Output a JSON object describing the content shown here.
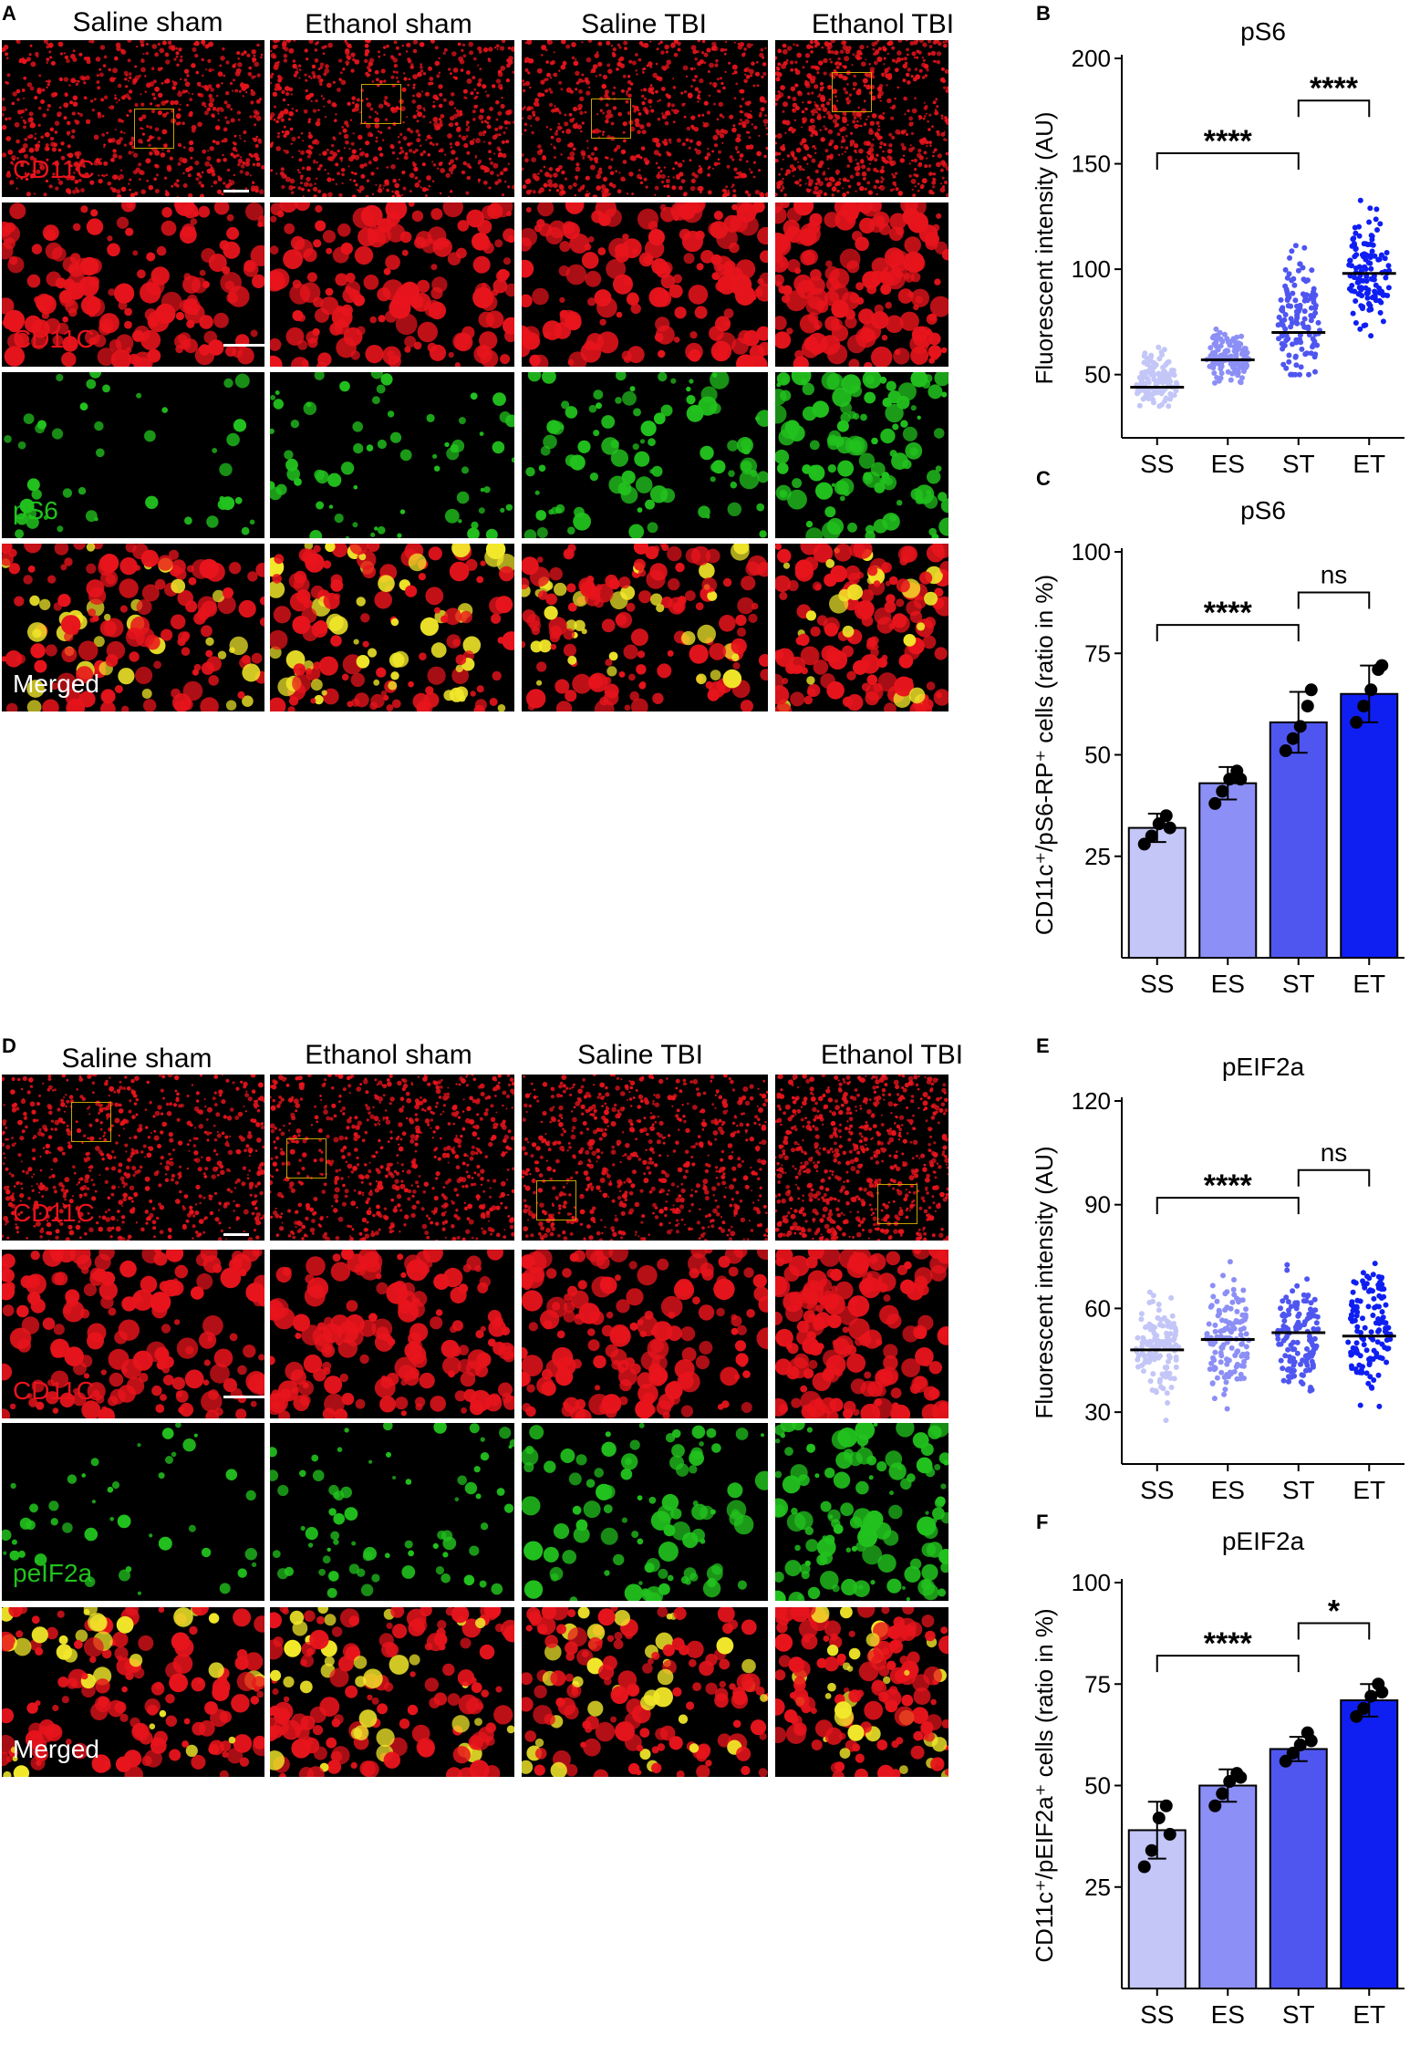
{
  "panel_letters": [
    "A",
    "B",
    "C",
    "D",
    "E",
    "F"
  ],
  "group_titles": [
    "Saline sham",
    "Ethanol sham",
    "Saline TBI",
    "Ethanol TBI"
  ],
  "row_labels_a": [
    "CD11C",
    "CD11C",
    "pS6",
    "Merged"
  ],
  "row_labels_d": [
    "CD11C",
    "CD11C",
    "peIF2a",
    "Merged"
  ],
  "colors": {
    "cd11c": "#e8141c",
    "green_stain": "#22c21e",
    "roi_box": "#c9a200",
    "SS": "#c3c6f7",
    "ES": "#8c8ff5",
    "ST": "#4f56f0",
    "ET": "#0f1ff2"
  },
  "chart_data": [
    {
      "id": "B",
      "type": "scatter",
      "title": "pS6",
      "ylabel": "Fluorescent intensity (AU)",
      "categories": [
        "SS",
        "ES",
        "ST",
        "ET"
      ],
      "ylim": [
        20,
        200
      ],
      "yticks": [
        50,
        100,
        150,
        200
      ],
      "means": [
        44,
        57,
        70,
        98
      ],
      "spread": [
        [
          35,
          75
        ],
        [
          45,
          78
        ],
        [
          50,
          133
        ],
        [
          62,
          141
        ]
      ],
      "n": 130,
      "brackets": [
        {
          "from": "SS",
          "to": "ST",
          "label": "****",
          "y": 155
        },
        {
          "from": "ST",
          "to": "ET",
          "label": "****",
          "y": 180
        }
      ]
    },
    {
      "id": "C",
      "type": "bar",
      "title": "pS6",
      "ylabel": "CD11c⁺/pS6-RP⁺ cells (ratio in %)",
      "categories": [
        "SS",
        "ES",
        "ST",
        "ET"
      ],
      "ylim": [
        0,
        100
      ],
      "yticks": [
        25,
        50,
        75,
        100
      ],
      "values": [
        32,
        43,
        58,
        65
      ],
      "errors": [
        3.5,
        4,
        7.5,
        7
      ],
      "points": [
        [
          28,
          30,
          33,
          35,
          32
        ],
        [
          38,
          41,
          44,
          46,
          44
        ],
        [
          51,
          54,
          57,
          62,
          66
        ],
        [
          58,
          62,
          66,
          71,
          72
        ]
      ],
      "brackets": [
        {
          "from": "SS",
          "to": "ST",
          "label": "****",
          "y": 82
        },
        {
          "from": "ST",
          "to": "ET",
          "label": "ns",
          "y": 90
        }
      ]
    },
    {
      "id": "E",
      "type": "scatter",
      "title": "pEIF2a",
      "ylabel": "Fluorescent intensity (AU)",
      "categories": [
        "SS",
        "ES",
        "ST",
        "ET"
      ],
      "ylim": [
        15,
        120
      ],
      "yticks": [
        30,
        60,
        90,
        120
      ],
      "means": [
        48,
        51,
        53,
        52
      ],
      "spread": [
        [
          25,
          68
        ],
        [
          27,
          76
        ],
        [
          31,
          75
        ],
        [
          30,
          85
        ]
      ],
      "n": 130,
      "brackets": [
        {
          "from": "SS",
          "to": "ST",
          "label": "****",
          "y": 92
        },
        {
          "from": "ST",
          "to": "ET",
          "label": "ns",
          "y": 100
        }
      ]
    },
    {
      "id": "F",
      "type": "bar",
      "title": "pEIF2a",
      "ylabel": "CD11c⁺/pEIF2a⁺ cells (ratio in %)",
      "categories": [
        "SS",
        "ES",
        "ST",
        "ET"
      ],
      "ylim": [
        0,
        100
      ],
      "yticks": [
        25,
        50,
        75,
        100
      ],
      "values": [
        39,
        50,
        59,
        71
      ],
      "errors": [
        7,
        4,
        3,
        4
      ],
      "points": [
        [
          30,
          34,
          42,
          45,
          38
        ],
        [
          45,
          48,
          51,
          53,
          52
        ],
        [
          56,
          58,
          60,
          63,
          61
        ],
        [
          67,
          69,
          72,
          75,
          73
        ]
      ],
      "brackets": [
        {
          "from": "SS",
          "to": "ST",
          "label": "****",
          "y": 82
        },
        {
          "from": "ST",
          "to": "ET",
          "label": "*",
          "y": 90
        }
      ]
    }
  ]
}
